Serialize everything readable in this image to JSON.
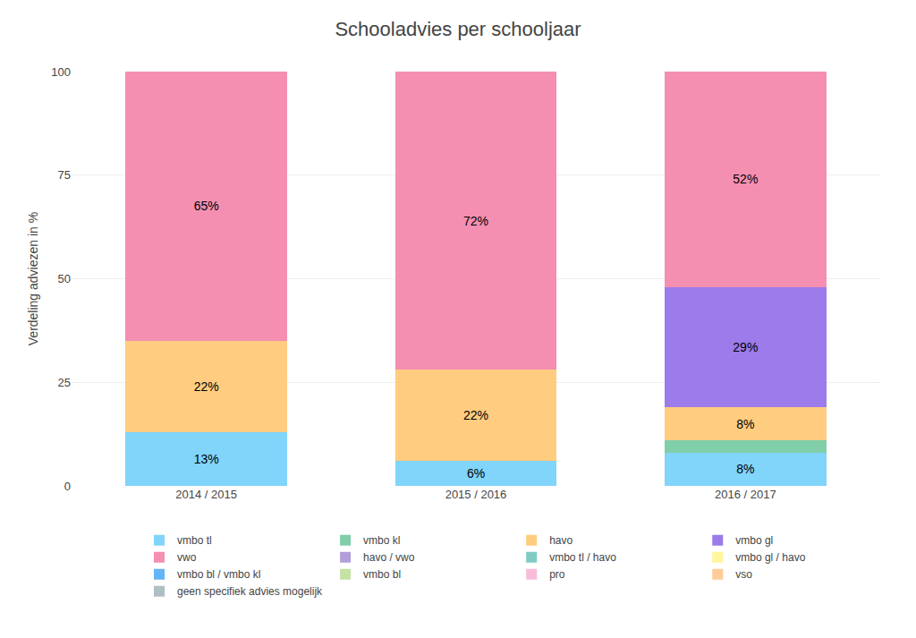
{
  "chart_data": {
    "type": "bar",
    "title": "Schooladvies per schooljaar",
    "y_label": "Verdeling adviezen in %",
    "categories": [
      "2014 / 2015",
      "2015 / 2016",
      "2016 / 2017"
    ],
    "stacked": true,
    "data_labels": true,
    "grid": true,
    "legend": "bottom",
    "ylim": [
      0,
      100
    ],
    "yticks": [
      0,
      25,
      50,
      75,
      100
    ],
    "series": [
      {
        "name": "vmbo tl",
        "color": "#81d4fa",
        "values": [
          13,
          6,
          8
        ],
        "value_labels": [
          "13%",
          "6%",
          "8%"
        ]
      },
      {
        "name": "vmbo kl",
        "color": "#80cfa9",
        "values": [
          0,
          0,
          3
        ]
      },
      {
        "name": "havo",
        "color": "#ffcc80",
        "values": [
          22,
          22,
          8
        ],
        "value_labels": [
          "22%",
          "22%",
          "8%"
        ]
      },
      {
        "name": "vmbo gl",
        "color": "#9c7bea",
        "values": [
          0,
          0,
          29
        ],
        "value_labels": [
          null,
          null,
          "29%"
        ]
      },
      {
        "name": "vwo",
        "color": "#f48fb1",
        "values": [
          65,
          72,
          52
        ],
        "value_labels": [
          "65%",
          "72%",
          "52%"
        ]
      },
      {
        "name": "havo / vwo",
        "color": "#b39ddb",
        "values": [
          null,
          null,
          null
        ]
      },
      {
        "name": "vmbo tl / havo",
        "color": "#80cbc4",
        "values": [
          null,
          null,
          null
        ]
      },
      {
        "name": "vmbo gl / havo",
        "color": "#fff59d",
        "values": [
          null,
          null,
          null
        ]
      },
      {
        "name": "vmbo bl / vmbo kl",
        "color": "#64b5f6",
        "values": [
          null,
          null,
          null
        ]
      },
      {
        "name": "vmbo bl",
        "color": "#c5e1a5",
        "values": [
          null,
          null,
          null
        ]
      },
      {
        "name": "pro",
        "color": "#f8bbd9",
        "values": [
          null,
          null,
          null
        ]
      },
      {
        "name": "vso",
        "color": "#ffcc99",
        "values": [
          null,
          null,
          null
        ]
      },
      {
        "name": "geen specifiek advies mogelijk",
        "color": "#b0bec5",
        "values": [
          null,
          null,
          null
        ]
      }
    ]
  }
}
